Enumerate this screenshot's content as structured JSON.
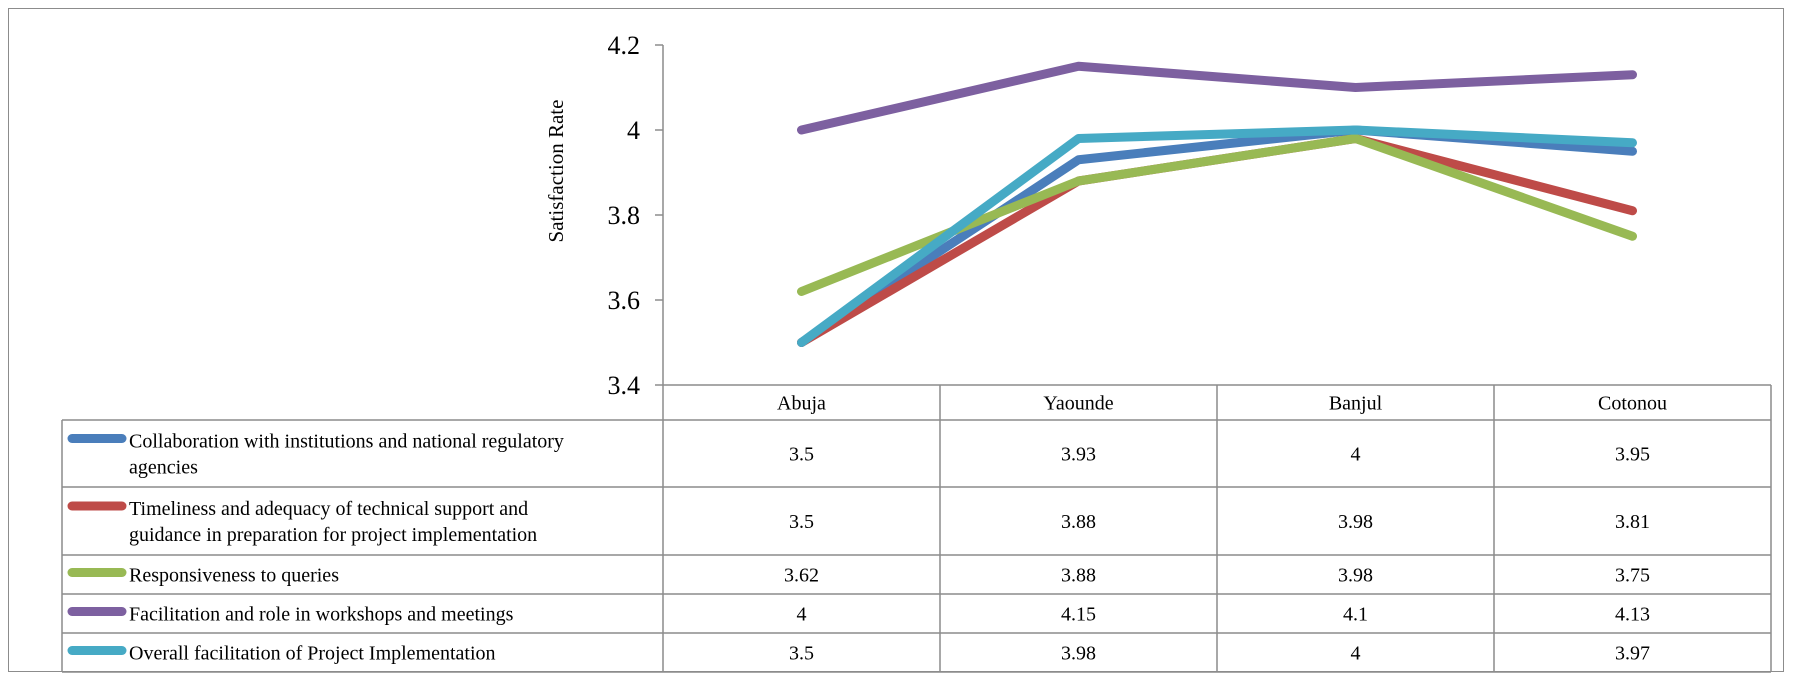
{
  "chart_data": {
    "type": "line",
    "title": "",
    "xlabel": "",
    "ylabel": "Satisfaction Rate",
    "ylim": [
      3.4,
      4.2
    ],
    "yticks": [
      "3.4",
      "3.6",
      "3.8",
      "4",
      "4.2"
    ],
    "ytick_values": [
      3.4,
      3.6,
      3.8,
      4.0,
      4.2
    ],
    "grid": false,
    "legend": "data-table",
    "categories": [
      "Abuja",
      "Yaounde",
      "Banjul",
      "Cotonou"
    ],
    "series": [
      {
        "name": "Collaboration with institutions and national regulatory agencies",
        "name_lines": [
          "Collaboration with institutions and national regulatory",
          "agencies"
        ],
        "color": "#4a7ebb",
        "values": [
          3.5,
          3.93,
          4,
          3.95
        ],
        "labels": [
          "3.5",
          "3.93",
          "4",
          "3.95"
        ]
      },
      {
        "name": "Timeliness and adequacy of technical support and guidance in preparation for project implementation",
        "name_lines": [
          "Timeliness and adequacy of technical support and",
          "guidance in preparation for project implementation"
        ],
        "color": "#be4b48",
        "values": [
          3.5,
          3.88,
          3.98,
          3.81
        ],
        "labels": [
          "3.5",
          "3.88",
          "3.98",
          "3.81"
        ]
      },
      {
        "name": "Responsiveness to queries",
        "name_lines": [
          "Responsiveness to queries"
        ],
        "color": "#98b954",
        "values": [
          3.62,
          3.88,
          3.98,
          3.75
        ],
        "labels": [
          "3.62",
          "3.88",
          "3.98",
          "3.75"
        ]
      },
      {
        "name": "Facilitation and role in workshops and meetings",
        "name_lines": [
          "Facilitation and role in workshops and meetings"
        ],
        "color": "#7d60a0",
        "values": [
          4,
          4.15,
          4.1,
          4.13
        ],
        "labels": [
          "4",
          "4.15",
          "4.1",
          "4.13"
        ]
      },
      {
        "name": "Overall facilitation of Project Implementation",
        "name_lines": [
          "Overall facilitation of Project Implementation"
        ],
        "color": "#46aac5",
        "values": [
          3.5,
          3.98,
          4,
          3.97
        ],
        "labels": [
          "3.5",
          "3.98",
          "4",
          "3.97"
        ]
      }
    ]
  }
}
